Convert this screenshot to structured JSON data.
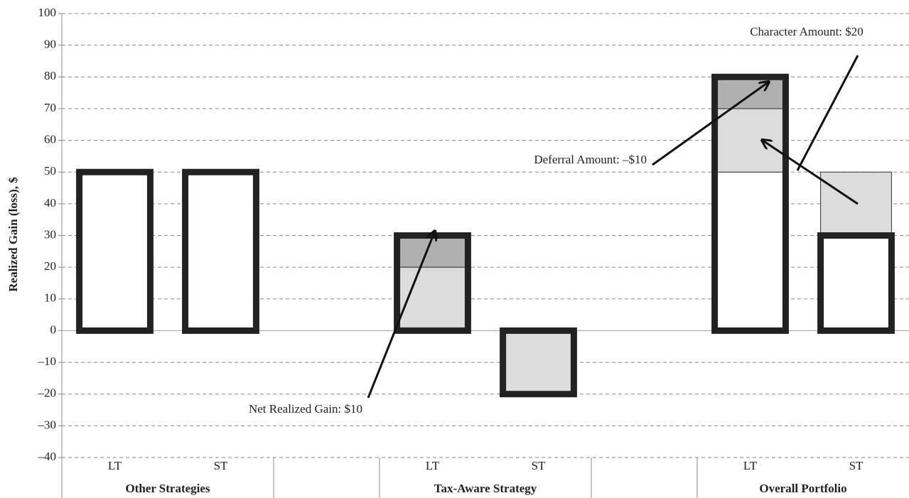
{
  "chart_data": {
    "type": "bar",
    "stacked": true,
    "y_label": "Realized Gain (loss), $",
    "categories": [
      "LT",
      "ST",
      null,
      "LT",
      "ST",
      null,
      "LT",
      "ST"
    ],
    "groups": [
      {
        "label": "Other Strategies",
        "categories": [
          0,
          1
        ]
      },
      {
        "label": "Tax-Aware Strategy",
        "categories": [
          3,
          4
        ]
      },
      {
        "label": "Overall Portfolio",
        "categories": [
          6,
          7
        ]
      }
    ],
    "series": [
      {
        "color": "#ffffff",
        "values": [
          50,
          50,
          null,
          null,
          null,
          null,
          50,
          30
        ],
        "outline": [
          true,
          true,
          null,
          null,
          null,
          null,
          true,
          true
        ]
      },
      {
        "color": "#dcdcdc",
        "values": [
          null,
          null,
          null,
          20,
          -20,
          null,
          20,
          20
        ],
        "outline": [
          null,
          null,
          null,
          true,
          true,
          null,
          true,
          false
        ]
      },
      {
        "color": "#b0b0b0",
        "values": [
          null,
          null,
          null,
          10,
          null,
          null,
          10,
          null
        ],
        "outline": [
          null,
          null,
          null,
          true,
          null,
          null,
          true,
          null
        ]
      }
    ],
    "ylim": [
      -40,
      100
    ],
    "yticks": [
      {
        "value": -40,
        "label": "–40"
      },
      {
        "value": -30,
        "label": "–30"
      },
      {
        "value": -20,
        "label": "–20"
      },
      {
        "value": -10,
        "label": "–10"
      },
      0,
      10,
      20,
      30,
      40,
      50,
      60,
      70,
      80,
      90,
      100
    ],
    "grid": true,
    "annotations": [
      {
        "text": "Character Amount: $20"
      },
      {
        "text": "Deferral Amount: –$10"
      },
      {
        "text": "Net Realized Gain: $10"
      }
    ]
  }
}
